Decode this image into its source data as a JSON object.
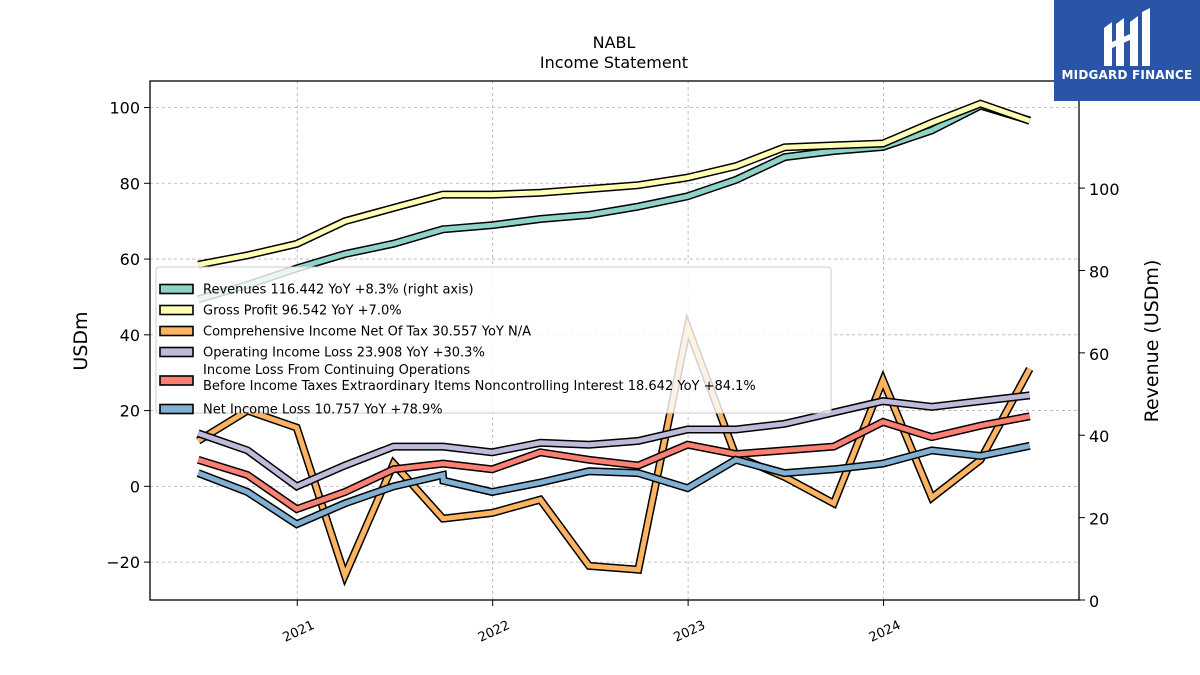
{
  "chart_data": {
    "type": "line",
    "title": "NABL",
    "subtitle": "Income Statement",
    "ylabel": "USDm",
    "ylabel_right": "Revenue (USDm)",
    "ylim": [
      -30,
      107
    ],
    "ylim_right": [
      0,
      126
    ],
    "yticks": [
      -20,
      0,
      20,
      40,
      60,
      80,
      100
    ],
    "yticks_right": [
      0,
      20,
      40,
      60,
      80,
      100
    ],
    "x_dates": [
      "2020-06-30",
      "2020-09-30",
      "2020-12-31",
      "2021-03-31",
      "2021-06-30",
      "2021-09-30",
      "2021-10-01",
      "2021-12-31",
      "2022-03-31",
      "2022-06-30",
      "2022-09-30",
      "2022-12-31",
      "2023-03-31",
      "2023-06-30",
      "2023-09-30",
      "2023-12-31",
      "2024-03-31",
      "2024-06-30",
      "2024-09-30"
    ],
    "xlim": [
      "2020-04-01",
      "2024-12-31"
    ],
    "xtick_labels": [
      "2021",
      "2022",
      "2023",
      "2024"
    ],
    "xtick_dates": [
      "2021-01-01",
      "2022-01-01",
      "2023-01-01",
      "2024-01-01"
    ],
    "grid": true,
    "legend_position": "center-left",
    "series": [
      {
        "name": "Revenues  116.442 YoY +8.3% (right axis)",
        "color": "#8dd3c7",
        "axis": "right",
        "values": [
          73,
          76.5,
          80.5,
          84,
          86.5,
          90,
          90,
          91,
          92.5,
          93.5,
          95.5,
          98,
          102,
          107.5,
          109,
          110,
          114,
          120,
          116.4
        ]
      },
      {
        "name": "Gross Profit  96.542 YoY +7.0%",
        "color": "#ffffb3",
        "axis": "left",
        "values": [
          58.5,
          61,
          64,
          70,
          73.5,
          77,
          77,
          77,
          77.5,
          78.5,
          79.5,
          81.5,
          84.5,
          89.5,
          90,
          90.5,
          96,
          101,
          96.5
        ]
      },
      {
        "name": "Comprehensive Income Net Of Tax  30.557 YoY N/A",
        "color": "#fdb462",
        "axis": "left",
        "values": [
          12,
          20,
          15.5,
          -23.5,
          6,
          -8.5,
          -8.5,
          -7,
          -3.5,
          -21,
          -22,
          42,
          8,
          2.5,
          -4.5,
          28,
          -3,
          7,
          31
        ]
      },
      {
        "name": "Operating Income Loss  23.908 YoY +30.3%",
        "color": "#bebada",
        "axis": "left",
        "values": [
          14,
          9.5,
          0,
          5.5,
          10.5,
          10.5,
          10.5,
          9,
          11.5,
          11,
          12,
          15,
          15,
          16.5,
          19.5,
          22.5,
          21,
          22.5,
          24
        ]
      },
      {
        "name": "Income Loss From Continuing Operations\nBefore Income Taxes Extraordinary Items Noncontrolling Interest  18.642 YoY +84.1%",
        "color": "#fb8072",
        "axis": "left",
        "values": [
          7,
          3,
          -6,
          -1.5,
          4.5,
          6,
          6,
          4.5,
          9,
          7,
          5.5,
          11,
          8.5,
          9.5,
          10.5,
          17,
          13,
          16,
          18.5
        ]
      },
      {
        "name": "Net Income Loss  10.757 YoY +78.9%",
        "color": "#80b1d3",
        "axis": "left",
        "values": [
          3.5,
          -1.5,
          -10,
          -4.5,
          0,
          3,
          1.5,
          -1.5,
          1,
          4,
          3.5,
          -0.5,
          7,
          3.5,
          4.5,
          6,
          9.5,
          8,
          10.7
        ]
      }
    ]
  },
  "logo": {
    "text": "MIDGARD FINANCE"
  }
}
